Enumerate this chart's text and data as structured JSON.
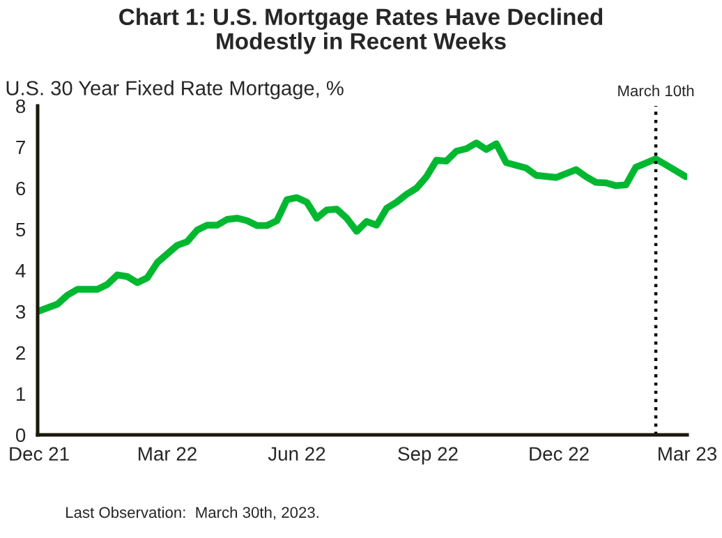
{
  "chart_data": {
    "type": "line",
    "title": "Chart 1: U.S. Mortgage Rates Have Declined\nModestly in Recent Weeks",
    "ylabel": "U.S. 30 Year Fixed Rate Mortgage, %",
    "x": [
      "2021-12-30",
      "2022-01-13",
      "2022-01-20",
      "2022-01-27",
      "2022-02-10",
      "2022-02-17",
      "2022-02-24",
      "2022-03-03",
      "2022-03-10",
      "2022-03-17",
      "2022-03-24",
      "2022-04-07",
      "2022-04-14",
      "2022-04-21",
      "2022-04-28",
      "2022-05-05",
      "2022-05-12",
      "2022-05-19",
      "2022-05-26",
      "2022-06-02",
      "2022-06-09",
      "2022-06-16",
      "2022-06-23",
      "2022-06-30",
      "2022-07-07",
      "2022-07-14",
      "2022-07-21",
      "2022-07-28",
      "2022-08-04",
      "2022-08-11",
      "2022-08-18",
      "2022-08-25",
      "2022-09-01",
      "2022-09-08",
      "2022-09-15",
      "2022-09-22",
      "2022-09-29",
      "2022-10-06",
      "2022-10-13",
      "2022-10-20",
      "2022-10-27",
      "2022-11-03",
      "2022-11-10",
      "2022-11-17",
      "2022-11-24",
      "2022-12-08",
      "2022-12-15",
      "2022-12-29",
      "2023-01-12",
      "2023-01-19",
      "2023-01-26",
      "2023-02-02",
      "2023-02-09",
      "2023-02-16",
      "2023-02-23",
      "2023-03-09",
      "2023-03-16",
      "2023-03-30"
    ],
    "series": [
      {
        "color": "#00b830",
        "values": [
          3.0,
          3.18,
          3.4,
          3.54,
          3.54,
          3.66,
          3.89,
          3.85,
          3.7,
          3.82,
          4.19,
          4.61,
          4.7,
          4.98,
          5.1,
          5.1,
          5.24,
          5.27,
          5.21,
          5.09,
          5.09,
          5.21,
          5.72,
          5.77,
          5.66,
          5.27,
          5.47,
          5.49,
          5.27,
          4.95,
          5.19,
          5.1,
          5.51,
          5.66,
          5.85,
          6.0,
          6.28,
          6.68,
          6.66,
          6.9,
          6.96,
          7.1,
          6.94,
          7.08,
          6.62,
          6.49,
          6.31,
          6.26,
          6.45,
          6.28,
          6.14,
          6.13,
          6.06,
          6.08,
          6.51,
          6.71,
          6.57,
          6.28
        ]
      }
    ],
    "xlim": [
      "2021-12-30",
      "2023-03-31"
    ],
    "xticks": [
      {
        "value": "2021-12-31",
        "label": "Dec 21"
      },
      {
        "value": "2022-03-31",
        "label": "Mar 22"
      },
      {
        "value": "2022-06-30",
        "label": "Jun 22"
      },
      {
        "value": "2022-09-30",
        "label": "Sep 22"
      },
      {
        "value": "2022-12-31",
        "label": "Dec 22"
      },
      {
        "value": "2023-03-31",
        "label": "Mar 23"
      }
    ],
    "ylim": [
      0,
      8
    ],
    "yticks": [
      0,
      1,
      2,
      3,
      4,
      5,
      6,
      7,
      8
    ],
    "ref_lines": [
      {
        "axis": "x",
        "value": "2023-03-09",
        "label": "March 10th",
        "color": "#000000",
        "line_style": "dotted"
      }
    ],
    "annotations": [
      "Last Observation:  March 30th, 2023."
    ],
    "grid": false,
    "legend": false,
    "marker": "none",
    "line_style": "solid"
  }
}
